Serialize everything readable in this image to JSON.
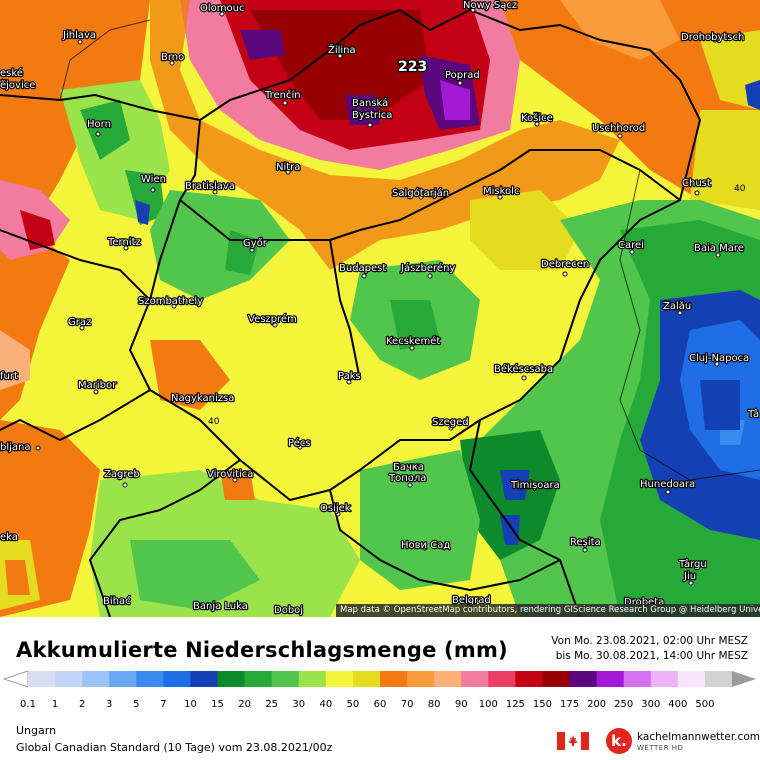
{
  "legend": {
    "title": "Akkumulierte Niederschlagsmenge (mm)",
    "period_from": "Von Mo. 23.08.2021, 02:00 Uhr MESZ",
    "period_to": "bis Mo. 30.08.2021, 14:00 Uhr MESZ",
    "ticks": [
      "0.1",
      "1",
      "2",
      "3",
      "5",
      "7",
      "10",
      "15",
      "20",
      "25",
      "30",
      "40",
      "50",
      "60",
      "70",
      "80",
      "90",
      "100",
      "125",
      "150",
      "175",
      "200",
      "250",
      "300",
      "400",
      "500"
    ],
    "colors": [
      "#d9dcf2",
      "#c2d6fb",
      "#9cc4fb",
      "#6aa6f6",
      "#3a8af0",
      "#1f6ee6",
      "#1440b4",
      "#0c8a2c",
      "#27a93a",
      "#52c64c",
      "#9be34a",
      "#f4f53a",
      "#e5db1f",
      "#f27a10",
      "#fa9b3c",
      "#fbb079",
      "#f27ba0",
      "#ee3d62",
      "#c40015",
      "#960000",
      "#5b087e",
      "#a319d6",
      "#d471f0",
      "#edb3f7",
      "#f9e4fb",
      "#d2d2d2"
    ]
  },
  "map": {
    "attribution": "Map data © OpenStreetMap contributors, rendering GIScience Research Group @ Heidelberg University",
    "max_value": "223",
    "latitude_label": "40",
    "cities": [
      {
        "name": "Olomouc"
      },
      {
        "name": "Nowy Sącz"
      },
      {
        "name": "Jihlava"
      },
      {
        "name": "Brno"
      },
      {
        "name": "Žilina"
      },
      {
        "name": "Drohobytsch"
      },
      {
        "name": "eské"
      },
      {
        "name": "ějovice"
      },
      {
        "name": "Poprad"
      },
      {
        "name": "Trenčín"
      },
      {
        "name": "Banská"
      },
      {
        "name": "Bystrica"
      },
      {
        "name": "Horn"
      },
      {
        "name": "Košice"
      },
      {
        "name": "Uschhorod"
      },
      {
        "name": "Nitra"
      },
      {
        "name": "Wien"
      },
      {
        "name": "Bratislava"
      },
      {
        "name": "Salgótarján"
      },
      {
        "name": "Miskolc"
      },
      {
        "name": "Chust"
      },
      {
        "name": "Ternitz"
      },
      {
        "name": "Győr"
      },
      {
        "name": "Carei"
      },
      {
        "name": "Baia Mare"
      },
      {
        "name": "Budapest"
      },
      {
        "name": "Jászberény"
      },
      {
        "name": "Debrecen"
      },
      {
        "name": "Szombathely"
      },
      {
        "name": "Zalău"
      },
      {
        "name": "Graz"
      },
      {
        "name": "Veszprém"
      },
      {
        "name": "Kecskemét"
      },
      {
        "name": "Cluj-Napoca"
      },
      {
        "name": "furt"
      },
      {
        "name": "Paks"
      },
      {
        "name": "Békéscsaba"
      },
      {
        "name": "Maribor"
      },
      {
        "name": "Nagykanizsa"
      },
      {
        "name": "Szeged"
      },
      {
        "name": "Tâ"
      },
      {
        "name": "bljana"
      },
      {
        "name": "Pécs"
      },
      {
        "name": "Бачка"
      },
      {
        "name": "Топола"
      },
      {
        "name": "Zagreb"
      },
      {
        "name": "Virovitica"
      },
      {
        "name": "Timișoara"
      },
      {
        "name": "Hunedoara"
      },
      {
        "name": "Osijek"
      },
      {
        "name": "eka"
      },
      {
        "name": "Нови Сад"
      },
      {
        "name": "Reșita"
      },
      {
        "name": "Târgu"
      },
      {
        "name": "Jiu"
      },
      {
        "name": "Belgrad"
      },
      {
        "name": "Bihać"
      },
      {
        "name": "Banja Luka"
      },
      {
        "name": "Doboj"
      },
      {
        "name": "Drobeta"
      }
    ]
  },
  "footer": {
    "region": "Ungarn",
    "model": "Global Canadian Standard (10 Tage) vom 23.08.2021/00z",
    "brand": "kachelmannwetter.com",
    "brand_sub": "WETTER HD",
    "logo_letter": "k."
  }
}
